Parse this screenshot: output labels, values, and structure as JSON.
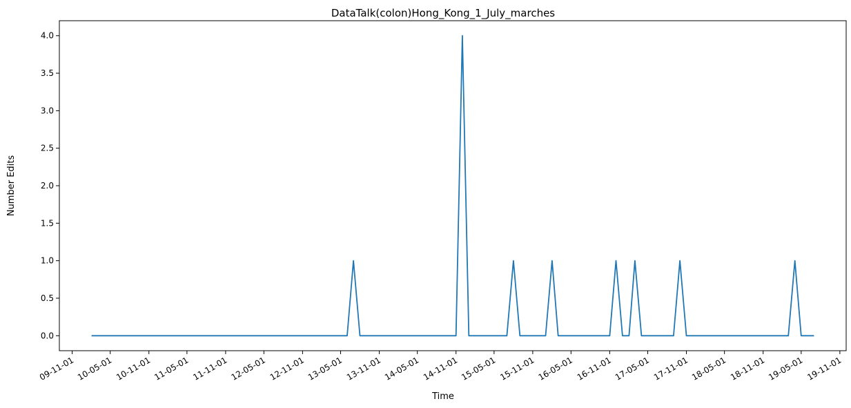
{
  "chart_data": {
    "type": "line",
    "title": "DataTalk(colon)Hong_Kong_1_July_marches",
    "xlabel": "Time",
    "ylabel": "Number Edits",
    "x_ticks": [
      "09-11-01",
      "10-05-01",
      "10-11-01",
      "11-05-01",
      "11-11-01",
      "12-05-01",
      "12-11-01",
      "13-05-01",
      "13-11-01",
      "14-05-01",
      "14-11-01",
      "15-05-01",
      "15-11-01",
      "16-05-01",
      "16-11-01",
      "17-05-01",
      "17-11-01",
      "18-05-01",
      "18-11-01",
      "19-05-01",
      "19-11-01"
    ],
    "y_ticks": [
      "0.0",
      "0.5",
      "1.0",
      "1.5",
      "2.0",
      "2.5",
      "3.0",
      "3.5",
      "4.0"
    ],
    "ylim": [
      -0.2,
      4.2
    ],
    "xlim": [
      "2009-09-01",
      "2019-12-01"
    ],
    "grid": false,
    "color": "#1f77b4",
    "series": [
      {
        "x": [
          "2010-02-01",
          "2013-06-01",
          "2013-07-01",
          "2013-08-01",
          "2014-11-01",
          "2014-12-01",
          "2015-01-01",
          "2015-07-01",
          "2015-08-01",
          "2015-09-01",
          "2016-01-01",
          "2016-02-01",
          "2016-03-01",
          "2016-11-01",
          "2016-12-01",
          "2017-01-01",
          "2017-02-01",
          "2017-03-01",
          "2017-04-01",
          "2017-09-01",
          "2017-10-01",
          "2017-11-01",
          "2019-03-01",
          "2019-04-01",
          "2019-05-01",
          "2019-07-01"
        ],
        "y": [
          0,
          0,
          1,
          0,
          0,
          4,
          0,
          0,
          1,
          0,
          0,
          1,
          0,
          0,
          1,
          0,
          0,
          1,
          0,
          0,
          1,
          0,
          0,
          1,
          0,
          0
        ]
      }
    ]
  }
}
